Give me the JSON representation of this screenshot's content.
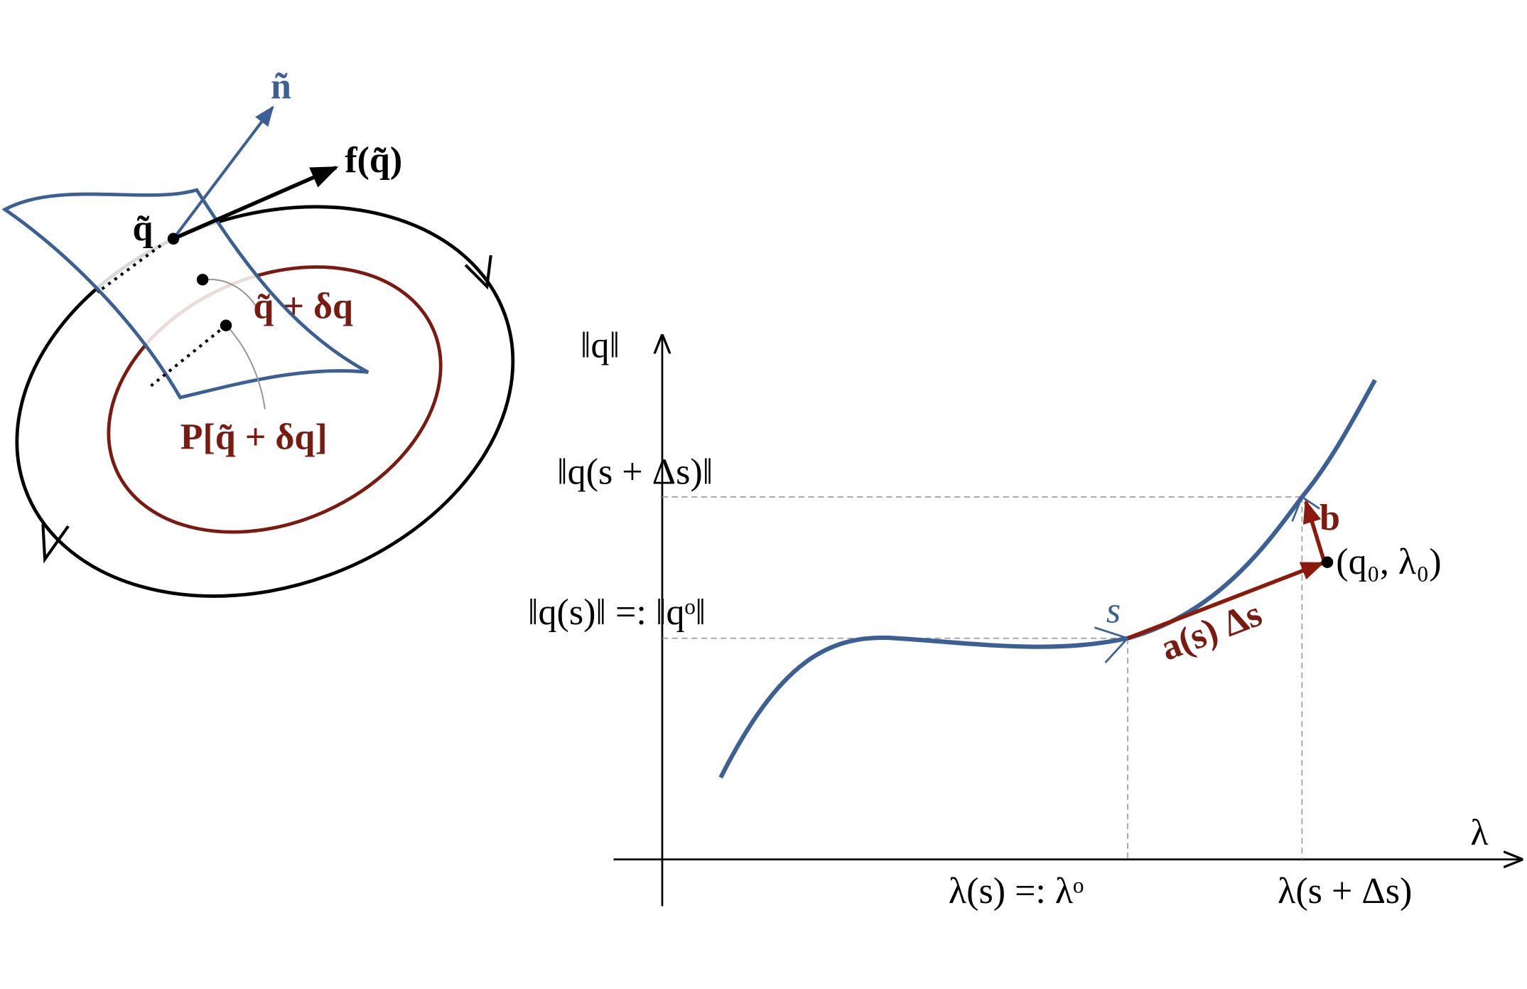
{
  "left_diagram": {
    "normal_label": "ñ",
    "point_label": "q̃",
    "force_label": "f(q̃)",
    "perturbed_label": "q̃ + δq",
    "map_label": "P[q̃ + δq]"
  },
  "right_diagram": {
    "y_axis_label": "‖q‖",
    "x_axis_label": "λ",
    "y_level_upper": "‖q(s + Δs)‖",
    "y_level_lower": "‖q(s)‖ =: ‖qᵒ‖",
    "x_level_left": "λ(s) =: λᵒ",
    "x_level_right": "λ(s + Δs)",
    "arc_label": "s",
    "predictor_label": "a(s) Δs",
    "corrector_label": "b",
    "point_label": "(q₀, λ₀)"
  }
}
